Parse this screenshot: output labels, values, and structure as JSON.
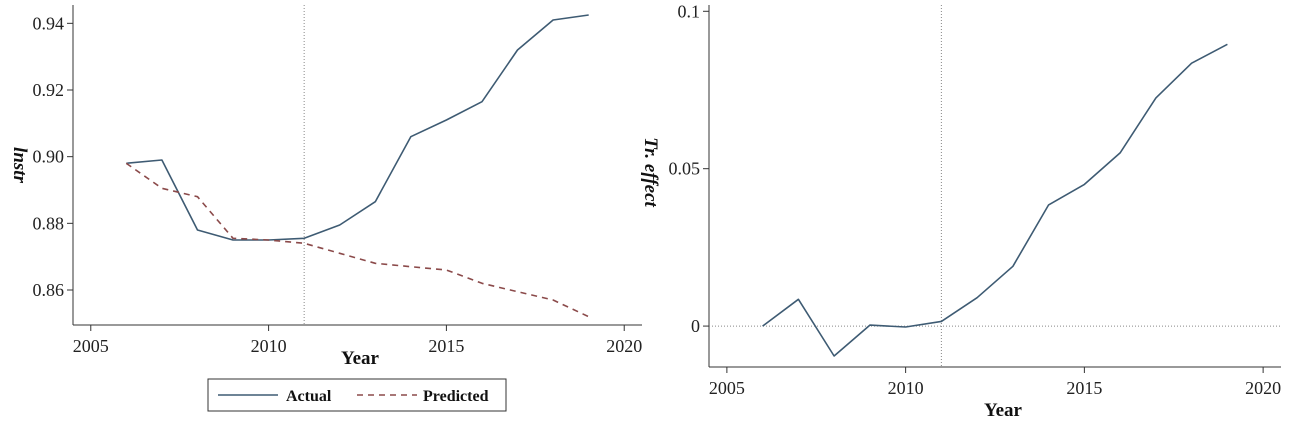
{
  "chart_data": [
    {
      "type": "line",
      "xlabel": "Year",
      "ylabel": "lnstr",
      "x": [
        2006,
        2007,
        2008,
        2009,
        2010,
        2011,
        2012,
        2013,
        2014,
        2015,
        2016,
        2017,
        2018,
        2019
      ],
      "series": [
        {
          "name": "Actual",
          "color": "#3e5b73",
          "style": "solid",
          "values": [
            0.898,
            0.899,
            0.878,
            0.875,
            0.875,
            0.8755,
            0.8795,
            0.8865,
            0.906,
            0.911,
            0.9165,
            0.932,
            0.941,
            0.9425
          ]
        },
        {
          "name": "Predicted",
          "color": "#8b4a4a",
          "style": "dashed",
          "values": [
            0.898,
            0.8905,
            0.888,
            0.8755,
            0.875,
            0.874,
            0.871,
            0.868,
            0.867,
            0.866,
            0.862,
            0.8595,
            0.857,
            0.852
          ]
        }
      ],
      "xlim": [
        2004.5,
        2020.5
      ],
      "ylim": [
        0.8495,
        0.9455
      ],
      "xticks": [
        "2005",
        "2010",
        "2015",
        "2020"
      ],
      "yticks": [
        "0.86",
        "0.88",
        "0.90",
        "0.92",
        "0.94"
      ],
      "vline_x": 2011,
      "legend_position": "bottom",
      "grid": false
    },
    {
      "type": "line",
      "xlabel": "Year",
      "ylabel": "Tr. effect",
      "x": [
        2006,
        2007,
        2008,
        2009,
        2010,
        2011,
        2012,
        2013,
        2014,
        2015,
        2016,
        2017,
        2018,
        2019
      ],
      "series": [
        {
          "color": "#3e5b73",
          "style": "solid",
          "values": [
            0.0,
            0.0085,
            -0.0095,
            0.0003,
            -0.0003,
            0.0015,
            0.009,
            0.019,
            0.0385,
            0.045,
            0.055,
            0.0725,
            0.0835,
            0.0895
          ]
        }
      ],
      "xlim": [
        2004.5,
        2020.5
      ],
      "ylim": [
        -0.013,
        0.102
      ],
      "xticks": [
        "2005",
        "2010",
        "2015",
        "2020"
      ],
      "yticks": [
        "0",
        "0.05",
        "0.1"
      ],
      "vline_x": 2011,
      "hline_y": 0,
      "grid": false
    }
  ]
}
